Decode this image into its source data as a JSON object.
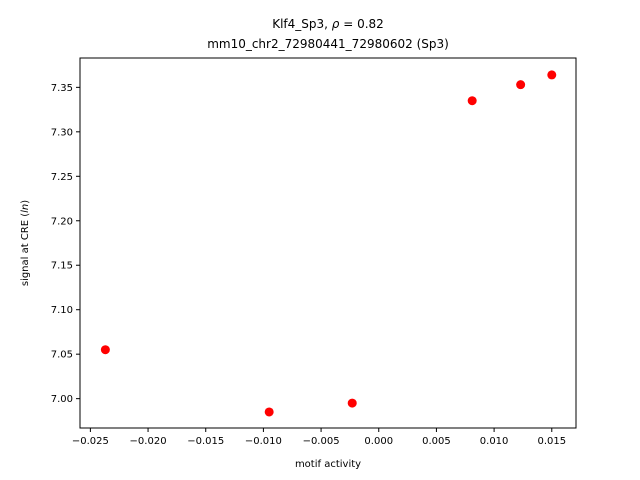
{
  "chart_data": {
    "type": "scatter",
    "title_line1_prefix": "Klf4_Sp3, ",
    "title_rho_symbol": "ρ",
    "title_rho_eq": " = 0.82",
    "title_line2": "mm10_chr2_72980441_72980602 (Sp3)",
    "xlabel": "motif activity",
    "ylabel_prefix": "signal at CRE (",
    "ylabel_italic": "ln",
    "ylabel_suffix": ")",
    "xlim": [
      -0.0259,
      0.0171
    ],
    "ylim": [
      6.967,
      7.383
    ],
    "x_ticks": [
      -0.025,
      -0.02,
      -0.015,
      -0.01,
      -0.005,
      0.0,
      0.005,
      0.01,
      0.015
    ],
    "x_tick_labels": [
      "−0.025",
      "−0.020",
      "−0.015",
      "−0.010",
      "−0.005",
      "0.000",
      "0.005",
      "0.010",
      "0.015"
    ],
    "y_ticks": [
      7.0,
      7.05,
      7.1,
      7.15,
      7.2,
      7.25,
      7.3,
      7.35
    ],
    "y_tick_labels": [
      "7.00",
      "7.05",
      "7.10",
      "7.15",
      "7.20",
      "7.25",
      "7.30",
      "7.35"
    ],
    "grid": false,
    "marker_color": "#ff0000",
    "points": [
      {
        "x": -0.0237,
        "y": 7.055
      },
      {
        "x": -0.0095,
        "y": 6.985
      },
      {
        "x": -0.0023,
        "y": 6.995
      },
      {
        "x": 0.0081,
        "y": 7.335
      },
      {
        "x": 0.0123,
        "y": 7.353
      },
      {
        "x": 0.015,
        "y": 7.364
      }
    ]
  }
}
